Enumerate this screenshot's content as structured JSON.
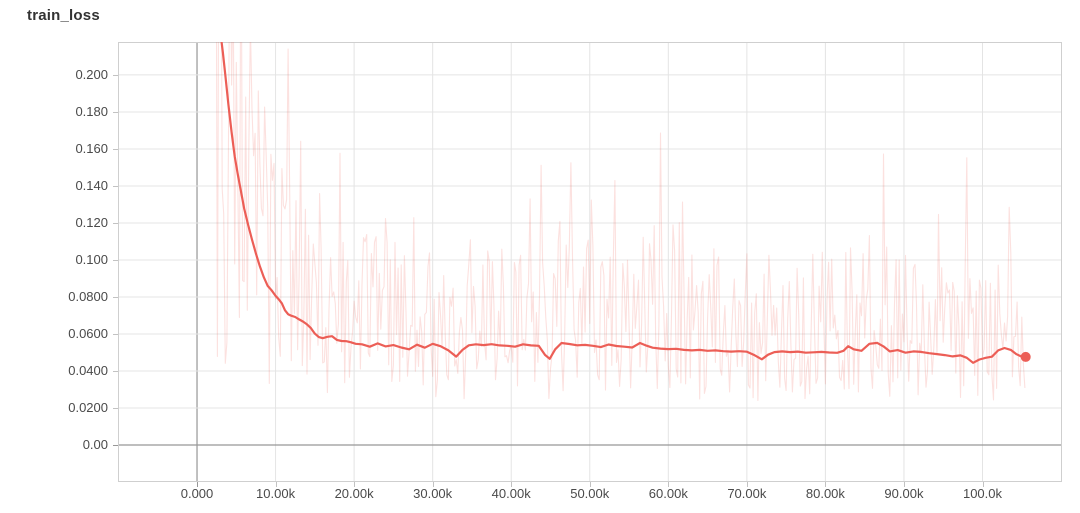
{
  "page": {
    "background": "#ffffff"
  },
  "header": {
    "title": "train_loss"
  },
  "colors": {
    "accent_line": "#ec5e56",
    "raw_line": "#ef6a60",
    "raw_opacity": 0.2,
    "grid": "#e4e4e4",
    "zero_axis": "#979797",
    "border": "#cfcfcf",
    "label_text": "#4a4a4a",
    "title_text": "#333333"
  },
  "chart_data": {
    "type": "line",
    "title": "train_loss",
    "grid": true,
    "legend": false,
    "x_axis": {
      "unit": "steps",
      "range_k": [
        -10.06,
        110.12
      ],
      "ticks": [
        {
          "pos": 0,
          "label": "0.000"
        },
        {
          "pos": 10,
          "label": "10.00k"
        },
        {
          "pos": 20,
          "label": "20.00k"
        },
        {
          "pos": 30,
          "label": "30.00k"
        },
        {
          "pos": 40,
          "label": "40.00k"
        },
        {
          "pos": 50,
          "label": "50.00k"
        },
        {
          "pos": 60,
          "label": "60.00k"
        },
        {
          "pos": 70,
          "label": "70.00k"
        },
        {
          "pos": 80,
          "label": "80.00k"
        },
        {
          "pos": 90,
          "label": "90.00k"
        },
        {
          "pos": 100,
          "label": "100.0k"
        }
      ]
    },
    "y_axis": {
      "range": [
        -0.02,
        0.2178
      ],
      "ticks": [
        {
          "pos": 0.2,
          "label": "0.200"
        },
        {
          "pos": 0.18,
          "label": "0.180"
        },
        {
          "pos": 0.16,
          "label": "0.160"
        },
        {
          "pos": 0.14,
          "label": "0.140"
        },
        {
          "pos": 0.12,
          "label": "0.120"
        },
        {
          "pos": 0.1,
          "label": "0.100"
        },
        {
          "pos": 0.08,
          "label": "0.0800"
        },
        {
          "pos": 0.06,
          "label": "0.0600"
        },
        {
          "pos": 0.04,
          "label": "0.0400"
        },
        {
          "pos": 0.02,
          "label": "0.0200"
        },
        {
          "pos": 0.0,
          "label": "0.00"
        }
      ]
    },
    "series": [
      {
        "name": "train_loss_unsmoothed",
        "style": "raw",
        "color": "#ef6a60",
        "opacity": 0.2,
        "noise": {
          "seed": 20240601,
          "step_k": 0.2,
          "start_k": 0,
          "end_k": 105.5,
          "mult_min": 0.48,
          "mult_span": 1.6,
          "spike_prob": 0.12,
          "spike_span": 1.3,
          "low_prob": 0.08,
          "low_base": 0.024,
          "low_span": 0.05,
          "clamp_min": 0.023,
          "clamp_max": 0.4
        }
      },
      {
        "name": "train_loss_smoothed",
        "style": "smoothed",
        "color": "#ec5e56",
        "points_step_k_value": [
          [
            0,
            0.55
          ],
          [
            0.5,
            0.46
          ],
          [
            1,
            0.39
          ],
          [
            1.5,
            0.33
          ],
          [
            2,
            0.283
          ],
          [
            2.5,
            0.247
          ],
          [
            3,
            0.222
          ],
          [
            3.3,
            0.212
          ],
          [
            3.6,
            0.2
          ],
          [
            4,
            0.184
          ],
          [
            4.4,
            0.169
          ],
          [
            4.8,
            0.156
          ],
          [
            5.2,
            0.146
          ],
          [
            5.6,
            0.137
          ],
          [
            6,
            0.128
          ],
          [
            6.5,
            0.119
          ],
          [
            7,
            0.111
          ],
          [
            7.5,
            0.1035
          ],
          [
            8,
            0.0965
          ],
          [
            8.5,
            0.0907
          ],
          [
            9,
            0.086
          ],
          [
            9.5,
            0.0836
          ],
          [
            10,
            0.0806
          ],
          [
            10.4,
            0.0788
          ],
          [
            10.8,
            0.0765
          ],
          [
            11.2,
            0.0728
          ],
          [
            11.6,
            0.0707
          ],
          [
            12,
            0.0699
          ],
          [
            12.5,
            0.0692
          ],
          [
            13,
            0.0679
          ],
          [
            13.5,
            0.0667
          ],
          [
            14,
            0.0652
          ],
          [
            14.5,
            0.0632
          ],
          [
            15,
            0.0602
          ],
          [
            15.5,
            0.0583
          ],
          [
            16,
            0.0577
          ],
          [
            16.6,
            0.0585
          ],
          [
            17.2,
            0.0588
          ],
          [
            17.8,
            0.0568
          ],
          [
            18.4,
            0.0562
          ],
          [
            19,
            0.0561
          ],
          [
            19.6,
            0.0555
          ],
          [
            20.2,
            0.0547
          ],
          [
            21,
            0.0544
          ],
          [
            22,
            0.0531
          ],
          [
            23,
            0.0549
          ],
          [
            24,
            0.0533
          ],
          [
            25,
            0.054
          ],
          [
            26,
            0.0527
          ],
          [
            27,
            0.0517
          ],
          [
            28,
            0.0542
          ],
          [
            29,
            0.0526
          ],
          [
            30,
            0.0547
          ],
          [
            31,
            0.0534
          ],
          [
            32,
            0.0511
          ],
          [
            33,
            0.0478
          ],
          [
            33.8,
            0.0514
          ],
          [
            34.6,
            0.0539
          ],
          [
            35.5,
            0.0544
          ],
          [
            36.5,
            0.054
          ],
          [
            37.5,
            0.0545
          ],
          [
            38.5,
            0.0538
          ],
          [
            39.5,
            0.0536
          ],
          [
            40.5,
            0.0531
          ],
          [
            41.5,
            0.0544
          ],
          [
            42.5,
            0.0538
          ],
          [
            43.5,
            0.0536
          ],
          [
            44.3,
            0.0487
          ],
          [
            44.9,
            0.0466
          ],
          [
            45.6,
            0.0517
          ],
          [
            46.4,
            0.0551
          ],
          [
            47.4,
            0.0546
          ],
          [
            48.4,
            0.0539
          ],
          [
            49.4,
            0.0541
          ],
          [
            50.4,
            0.0536
          ],
          [
            51.4,
            0.0529
          ],
          [
            52.4,
            0.0543
          ],
          [
            53.4,
            0.0535
          ],
          [
            54.4,
            0.0531
          ],
          [
            55.4,
            0.0527
          ],
          [
            56.4,
            0.0551
          ],
          [
            57.2,
            0.0537
          ],
          [
            58,
            0.0526
          ],
          [
            59,
            0.0521
          ],
          [
            60,
            0.0518
          ],
          [
            61,
            0.052
          ],
          [
            62,
            0.0514
          ],
          [
            63,
            0.0511
          ],
          [
            64,
            0.0514
          ],
          [
            65,
            0.0509
          ],
          [
            66,
            0.0511
          ],
          [
            67,
            0.0507
          ],
          [
            68,
            0.0505
          ],
          [
            69,
            0.0507
          ],
          [
            70,
            0.0504
          ],
          [
            71,
            0.0485
          ],
          [
            71.9,
            0.0463
          ],
          [
            72.7,
            0.0488
          ],
          [
            73.5,
            0.0502
          ],
          [
            74.5,
            0.0506
          ],
          [
            75.5,
            0.0502
          ],
          [
            76.5,
            0.0505
          ],
          [
            77.5,
            0.0499
          ],
          [
            78.5,
            0.0501
          ],
          [
            79.5,
            0.0503
          ],
          [
            80.5,
            0.05
          ],
          [
            81.5,
            0.0498
          ],
          [
            82.3,
            0.0509
          ],
          [
            82.9,
            0.0534
          ],
          [
            83.6,
            0.0517
          ],
          [
            84.6,
            0.0509
          ],
          [
            85.6,
            0.0547
          ],
          [
            86.6,
            0.0552
          ],
          [
            87.4,
            0.0533
          ],
          [
            88.2,
            0.0506
          ],
          [
            89.2,
            0.0513
          ],
          [
            90.2,
            0.0499
          ],
          [
            91.2,
            0.0506
          ],
          [
            92.2,
            0.0503
          ],
          [
            93.2,
            0.0496
          ],
          [
            94.2,
            0.0491
          ],
          [
            95.2,
            0.0486
          ],
          [
            96.2,
            0.0479
          ],
          [
            97.2,
            0.0484
          ],
          [
            98,
            0.0471
          ],
          [
            98.8,
            0.0444
          ],
          [
            99.6,
            0.0462
          ],
          [
            100.4,
            0.0471
          ],
          [
            101.2,
            0.0477
          ],
          [
            102,
            0.0511
          ],
          [
            102.8,
            0.0524
          ],
          [
            103.6,
            0.0514
          ],
          [
            104.3,
            0.0491
          ],
          [
            104.9,
            0.0479
          ],
          [
            105.5,
            0.0476
          ]
        ]
      }
    ],
    "end_marker": {
      "step_k": 105.5,
      "value": 0.0476,
      "radius_px": 5
    }
  }
}
